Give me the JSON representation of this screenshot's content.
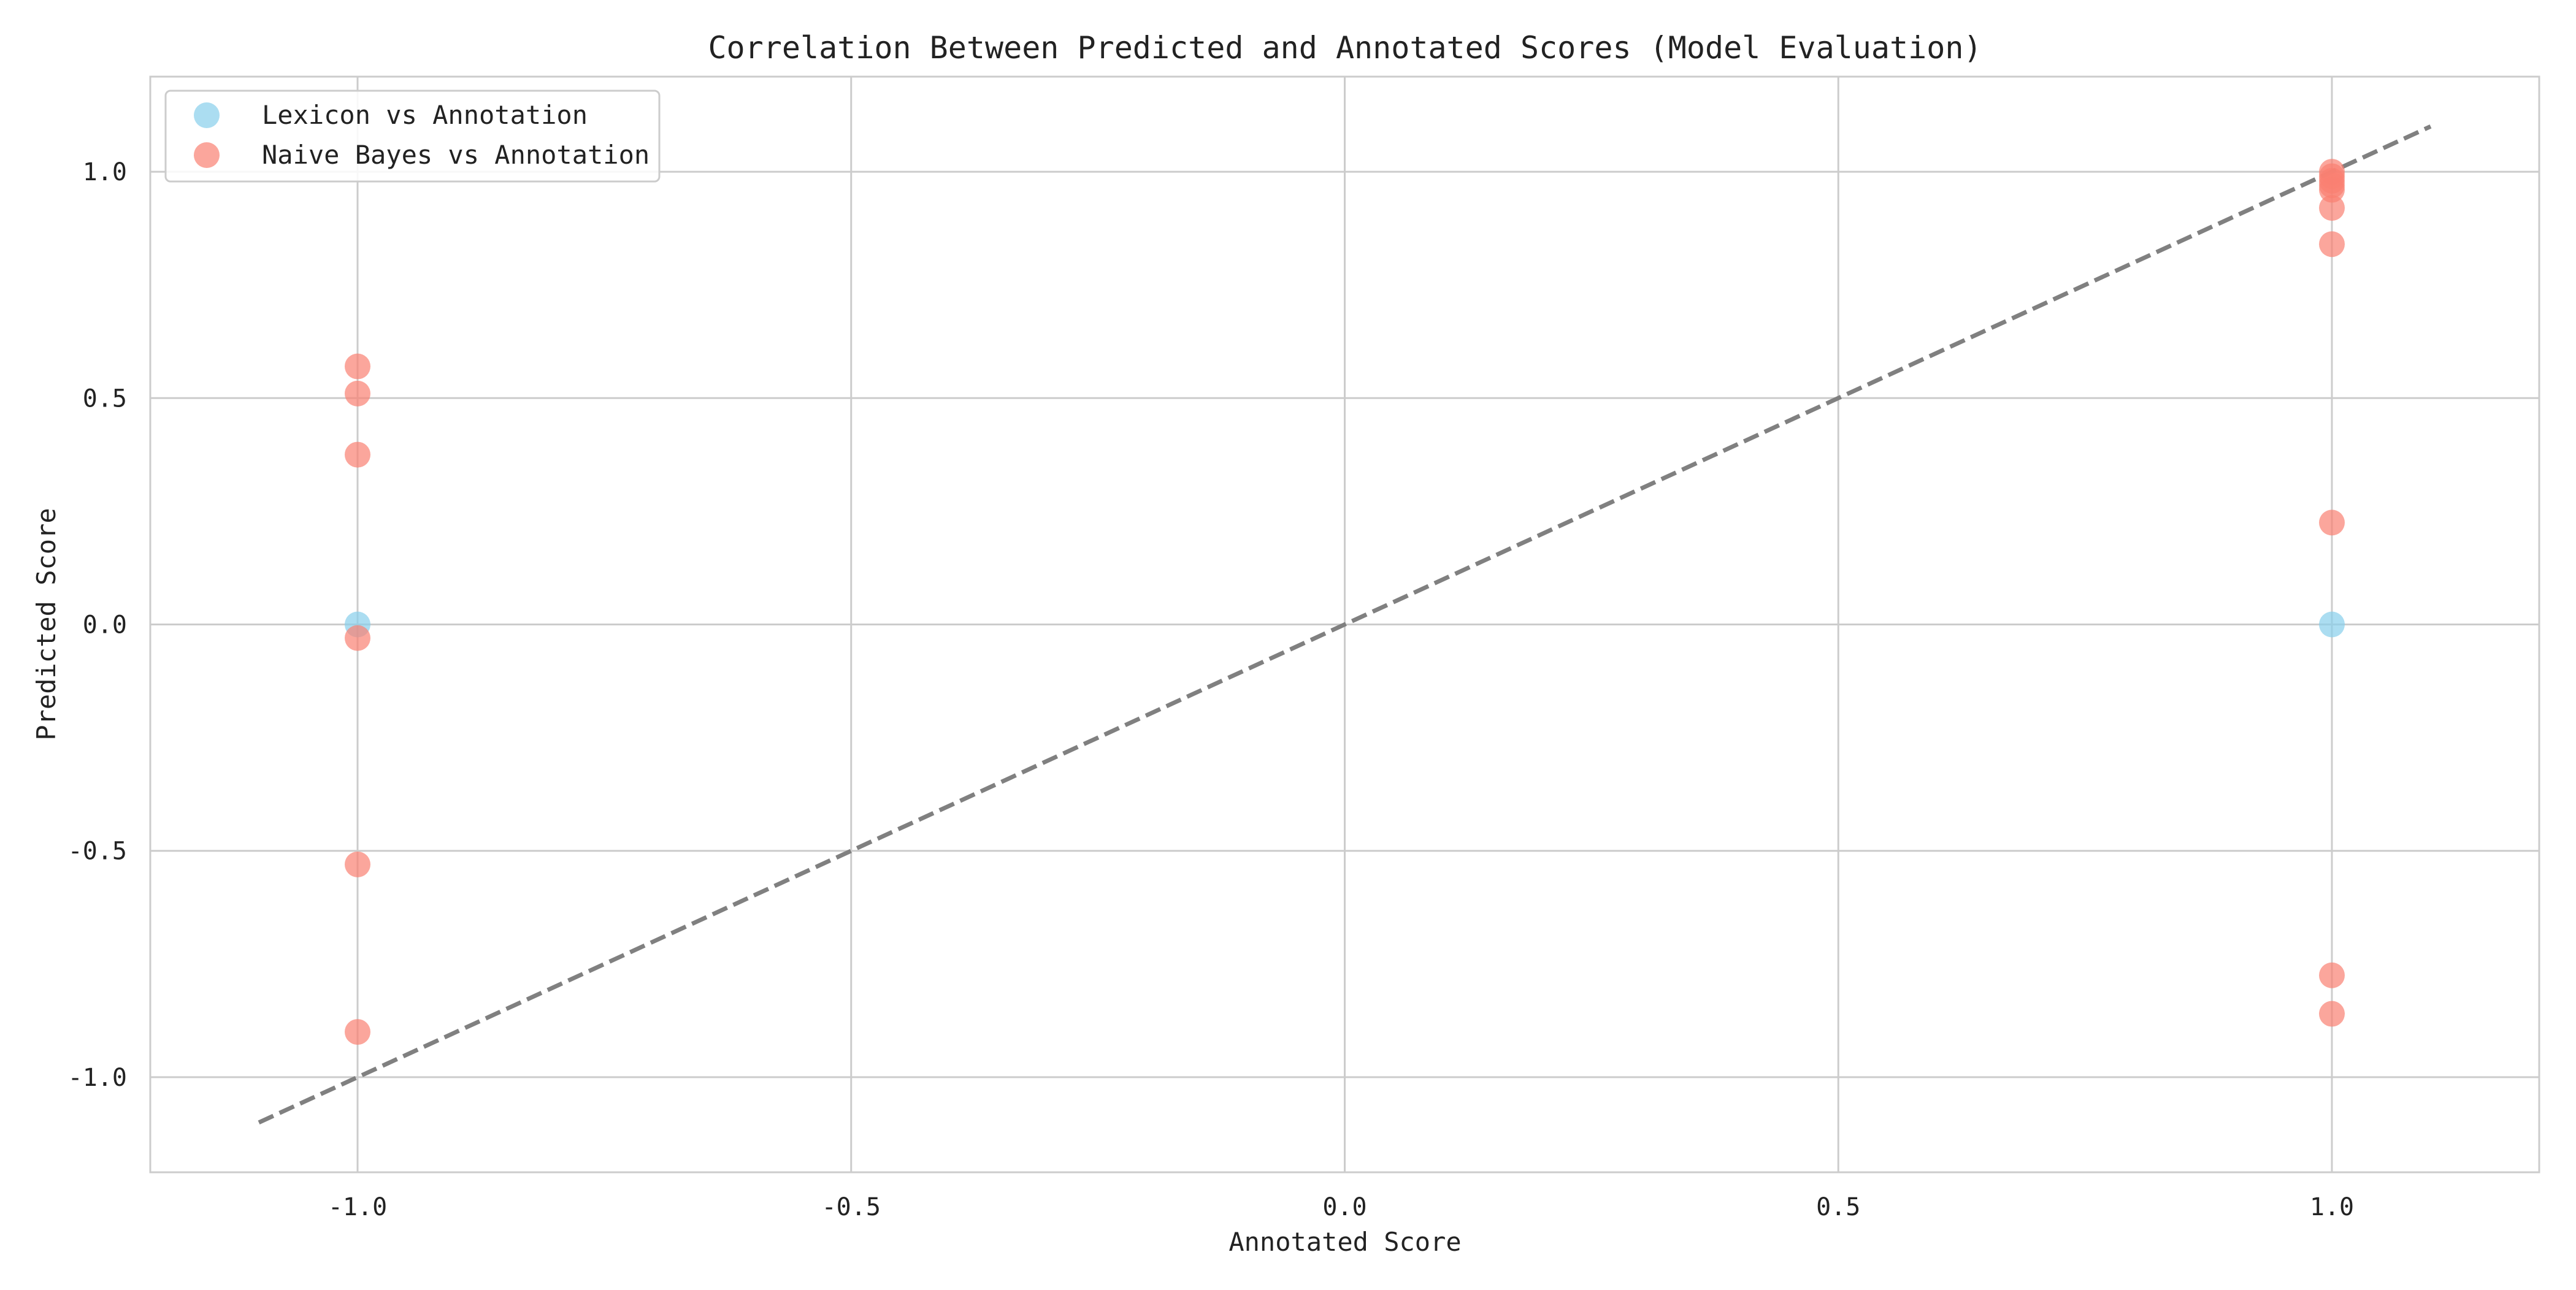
{
  "chart_data": {
    "type": "scatter",
    "title": "Correlation Between Predicted and Annotated Scores (Model Evaluation)",
    "xlabel": "Annotated Score",
    "ylabel": "Predicted Score",
    "xlim": [
      -1.21,
      1.21
    ],
    "ylim": [
      -1.21,
      1.21
    ],
    "xticks": [
      -1.0,
      -0.5,
      0.0,
      0.5,
      1.0
    ],
    "yticks": [
      -1.0,
      -0.5,
      0.0,
      0.5,
      1.0
    ],
    "xtick_labels": [
      "-1.0",
      "-0.5",
      "0.0",
      "0.5",
      "1.0"
    ],
    "ytick_labels": [
      "-1.0",
      "-0.5",
      "0.0",
      "0.5",
      "1.0"
    ],
    "grid": true,
    "legend": "top-left",
    "reference_line": {
      "style": "dashed",
      "color": "#808080",
      "x": [
        -1.1,
        1.1
      ],
      "y": [
        -1.1,
        1.1
      ]
    },
    "series": [
      {
        "name": "Lexicon vs Annotation",
        "color": "#87CEEB",
        "points": [
          {
            "x": -1.0,
            "y": 0.0
          },
          {
            "x": 1.0,
            "y": 0.0
          }
        ]
      },
      {
        "name": "Naive Bayes vs Annotation",
        "color": "#FA8072",
        "points": [
          {
            "x": -1.0,
            "y": 0.57
          },
          {
            "x": -1.0,
            "y": 0.51
          },
          {
            "x": -1.0,
            "y": 0.375
          },
          {
            "x": -1.0,
            "y": -0.03
          },
          {
            "x": -1.0,
            "y": -0.53
          },
          {
            "x": -1.0,
            "y": -0.9
          },
          {
            "x": 1.0,
            "y": 1.0
          },
          {
            "x": 1.0,
            "y": 0.99
          },
          {
            "x": 1.0,
            "y": 0.98
          },
          {
            "x": 1.0,
            "y": 0.97
          },
          {
            "x": 1.0,
            "y": 0.96
          },
          {
            "x": 1.0,
            "y": 0.92
          },
          {
            "x": 1.0,
            "y": 0.84
          },
          {
            "x": 1.0,
            "y": 0.225
          },
          {
            "x": 1.0,
            "y": -0.775
          },
          {
            "x": 1.0,
            "y": -0.86
          }
        ]
      }
    ]
  }
}
